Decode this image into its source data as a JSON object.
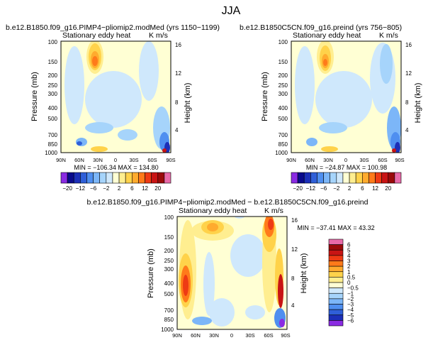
{
  "figure": {
    "season": "JJA"
  },
  "panels": [
    {
      "case_title": "b.e12.B1850.f09_g16.PIMP4−pliomip2.modMed (yrs 1150−1199)",
      "var_title": "Stationary eddy heat",
      "units": "K m/s",
      "min_max": "MIN = −106.34   MAX = 134.80"
    },
    {
      "case_title": "b.e12.B1850C5CN.f09_g16.preind (yrs 756−805)",
      "var_title": "Stationary eddy heat",
      "units": "K m/s",
      "min_max": "MIN = −24.87   MAX = 100.98"
    },
    {
      "case_title": "b.e12.B1850.f09_g16.PIMP4−pliomip2.modMed − b.e12.B1850C5CN.f09_g16.preind",
      "var_title": "Stationary eddy heat",
      "units": "K m/s",
      "min_max": "MIN = −37.41   MAX =  43.32"
    }
  ],
  "axes": {
    "ylabel_left": "Pressure (mb)",
    "ylabel_right": "Height (km)",
    "pressure_ticks": [
      "100",
      "150",
      "200",
      "250",
      "300",
      "400",
      "500",
      "700",
      "850",
      "1000"
    ],
    "height_ticks": [
      "16",
      "12",
      "8",
      "4"
    ],
    "lat_ticks": [
      "90N",
      "60N",
      "30N",
      "0",
      "30S",
      "60S",
      "90S"
    ]
  },
  "colorbar_top": {
    "labels": [
      "−20",
      "−12",
      "−6",
      "−2",
      "2",
      "6",
      "12",
      "20"
    ],
    "colors": [
      "#8a2be2",
      "#0a0a8c",
      "#1c2fb8",
      "#2f5fd8",
      "#4f8ff0",
      "#7cb6f8",
      "#a6d4fb",
      "#cfe8fc",
      "#ffffd4",
      "#ffee90",
      "#ffd24a",
      "#ffab2e",
      "#ff7a1a",
      "#ee3a14",
      "#c81414",
      "#9a0a0a",
      "#e86aa8"
    ]
  },
  "colorbar_diff": {
    "labels": [
      "6",
      "5",
      "4",
      "3",
      "2",
      "1",
      "0.5",
      "0",
      "−0.5",
      "−1",
      "−2",
      "−3",
      "−4",
      "−5",
      "−6"
    ],
    "colors": [
      "#e86aa8",
      "#9a0a0a",
      "#c81414",
      "#ee3a14",
      "#ff7a1a",
      "#ffab2e",
      "#ffd24a",
      "#ffee90",
      "#ffffd4",
      "#cfe8fc",
      "#a6d4fb",
      "#7cb6f8",
      "#4f8ff0",
      "#2f5fd8",
      "#1c2fb8",
      "#8a2be2"
    ]
  },
  "chart_data": [
    {
      "type": "heatmap",
      "x_categories": [
        "90N",
        "60N",
        "30N",
        "0",
        "30S",
        "60S",
        "90S"
      ],
      "y_pressure_levels_mb": [
        100,
        150,
        200,
        250,
        300,
        400,
        500,
        700,
        850,
        1000
      ],
      "y_height_km": [
        4,
        8,
        12,
        16
      ],
      "min": -106.34,
      "max": 134.8,
      "contour_levels": [
        -20,
        -12,
        -6,
        -2,
        2,
        6,
        12,
        20
      ],
      "units": "K m/s"
    },
    {
      "type": "heatmap",
      "x_categories": [
        "90N",
        "60N",
        "30N",
        "0",
        "30S",
        "60S",
        "90S"
      ],
      "y_pressure_levels_mb": [
        100,
        150,
        200,
        250,
        300,
        400,
        500,
        700,
        850,
        1000
      ],
      "y_height_km": [
        4,
        8,
        12,
        16
      ],
      "min": -24.87,
      "max": 100.98,
      "contour_levels": [
        -20,
        -12,
        -6,
        -2,
        2,
        6,
        12,
        20
      ],
      "units": "K m/s"
    },
    {
      "type": "heatmap",
      "x_categories": [
        "90N",
        "60N",
        "30N",
        "0",
        "30S",
        "60S",
        "90S"
      ],
      "y_pressure_levels_mb": [
        100,
        150,
        200,
        250,
        300,
        400,
        500,
        700,
        850,
        1000
      ],
      "y_height_km": [
        4,
        8,
        12,
        16
      ],
      "min": -37.41,
      "max": 43.32,
      "contour_levels": [
        -6,
        -5,
        -4,
        -3,
        -2,
        -1,
        -0.5,
        0,
        0.5,
        1,
        2,
        3,
        4,
        5,
        6
      ],
      "units": "K m/s"
    }
  ]
}
